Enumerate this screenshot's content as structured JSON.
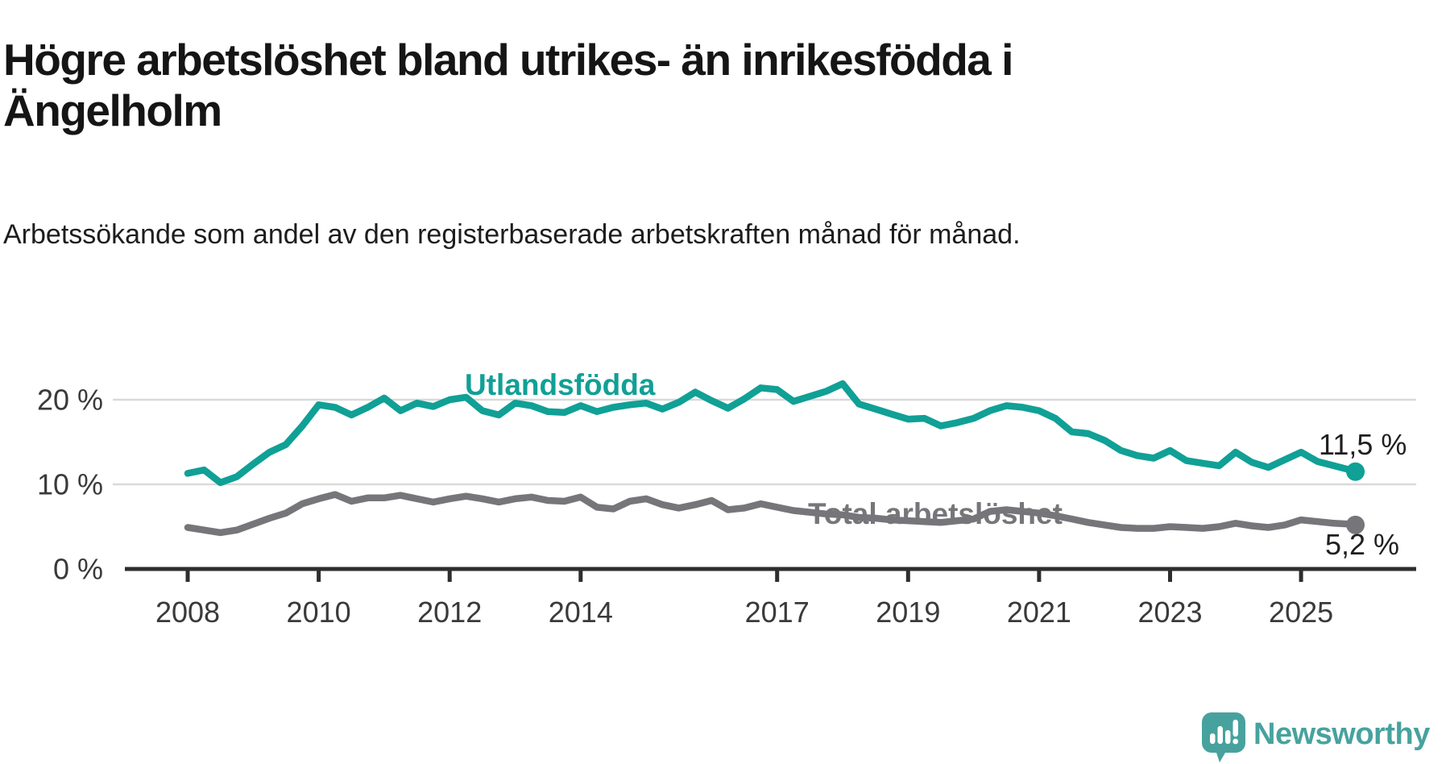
{
  "header": {
    "title": "Högre arbetslöshet bland utrikes- än inrikesfödda i Ängelholm",
    "subtitle": "Arbetssökande som andel av den registerbaserade arbetskraften månad för månad."
  },
  "chart_data": {
    "type": "line",
    "title": "Högre arbetslöshet bland utrikes- än inrikesfödda i Ängelholm",
    "subtitle": "Arbetssökande som andel av den registerbaserade arbetskraften månad för månad.",
    "x_unit": "decimal year (monthly series shown, digitized quarterly)",
    "x_range": [
      2008.0,
      2025.83
    ],
    "ylim": [
      0,
      24
    ],
    "grid": "horizontal",
    "legend_position": "inline-labels",
    "y_axis": {
      "ticks": [
        {
          "value": 20,
          "label": "20 %"
        },
        {
          "value": 10,
          "label": "10 %"
        },
        {
          "value": 0,
          "label": "0 %"
        }
      ]
    },
    "x_axis": {
      "tick_years": [
        2008,
        2010,
        2012,
        2014,
        2017,
        2019,
        2021,
        2023,
        2025
      ]
    },
    "x": [
      2008.0,
      2008.25,
      2008.5,
      2008.75,
      2009.0,
      2009.25,
      2009.5,
      2009.75,
      2010.0,
      2010.25,
      2010.5,
      2010.75,
      2011.0,
      2011.25,
      2011.5,
      2011.75,
      2012.0,
      2012.25,
      2012.5,
      2012.75,
      2013.0,
      2013.25,
      2013.5,
      2013.75,
      2014.0,
      2014.25,
      2014.5,
      2014.75,
      2015.0,
      2015.25,
      2015.5,
      2015.75,
      2016.0,
      2016.25,
      2016.5,
      2016.75,
      2017.0,
      2017.25,
      2017.5,
      2017.75,
      2018.0,
      2018.25,
      2018.5,
      2018.75,
      2019.0,
      2019.25,
      2019.5,
      2019.75,
      2020.0,
      2020.25,
      2020.5,
      2020.75,
      2021.0,
      2021.25,
      2021.5,
      2021.75,
      2022.0,
      2022.25,
      2022.5,
      2022.75,
      2023.0,
      2023.25,
      2023.5,
      2023.75,
      2024.0,
      2024.25,
      2024.5,
      2024.75,
      2025.0,
      2025.25,
      2025.5,
      2025.75,
      2025.83
    ],
    "series": [
      {
        "name": "Utlandsfödda",
        "color": "#10a096",
        "end_value": 11.5,
        "end_label": "11,5 %",
        "values": [
          11.3,
          11.7,
          10.2,
          10.9,
          12.4,
          13.8,
          14.7,
          16.9,
          19.4,
          19.1,
          18.2,
          19.1,
          20.2,
          18.7,
          19.6,
          19.2,
          20.0,
          20.3,
          18.7,
          18.2,
          19.6,
          19.3,
          18.6,
          18.5,
          19.3,
          18.6,
          19.1,
          19.4,
          19.6,
          18.9,
          19.7,
          20.9,
          19.9,
          19.0,
          20.1,
          21.4,
          21.2,
          19.8,
          20.4,
          21.0,
          21.9,
          19.5,
          18.9,
          18.3,
          17.7,
          17.8,
          16.9,
          17.3,
          17.8,
          18.7,
          19.3,
          19.1,
          18.7,
          17.8,
          16.2,
          16.0,
          15.2,
          14.0,
          13.4,
          13.1,
          14.0,
          12.8,
          12.5,
          12.2,
          13.8,
          12.6,
          12.0,
          12.9,
          13.8,
          12.7,
          12.2,
          11.7,
          11.5
        ]
      },
      {
        "name": "Total arbetslöshet",
        "color": "#76767a",
        "end_value": 5.2,
        "end_label": "5,2 %",
        "values": [
          4.9,
          4.6,
          4.3,
          4.6,
          5.3,
          6.0,
          6.6,
          7.7,
          8.3,
          8.8,
          8.0,
          8.4,
          8.4,
          8.7,
          8.3,
          7.9,
          8.3,
          8.6,
          8.3,
          7.9,
          8.3,
          8.5,
          8.1,
          8.0,
          8.5,
          7.3,
          7.1,
          8.0,
          8.3,
          7.6,
          7.2,
          7.6,
          8.1,
          7.0,
          7.2,
          7.7,
          7.3,
          6.9,
          6.7,
          6.5,
          6.4,
          6.1,
          6.0,
          5.8,
          5.7,
          5.6,
          5.5,
          5.7,
          5.9,
          6.8,
          7.0,
          6.8,
          6.6,
          6.3,
          5.9,
          5.5,
          5.2,
          4.9,
          4.8,
          4.8,
          5.0,
          4.9,
          4.8,
          5.0,
          5.4,
          5.1,
          4.9,
          5.2,
          5.8,
          5.6,
          5.4,
          5.3,
          5.2
        ]
      }
    ]
  },
  "branding": {
    "logo_text": "Newsworthy",
    "logo_color": "#47a29e"
  }
}
